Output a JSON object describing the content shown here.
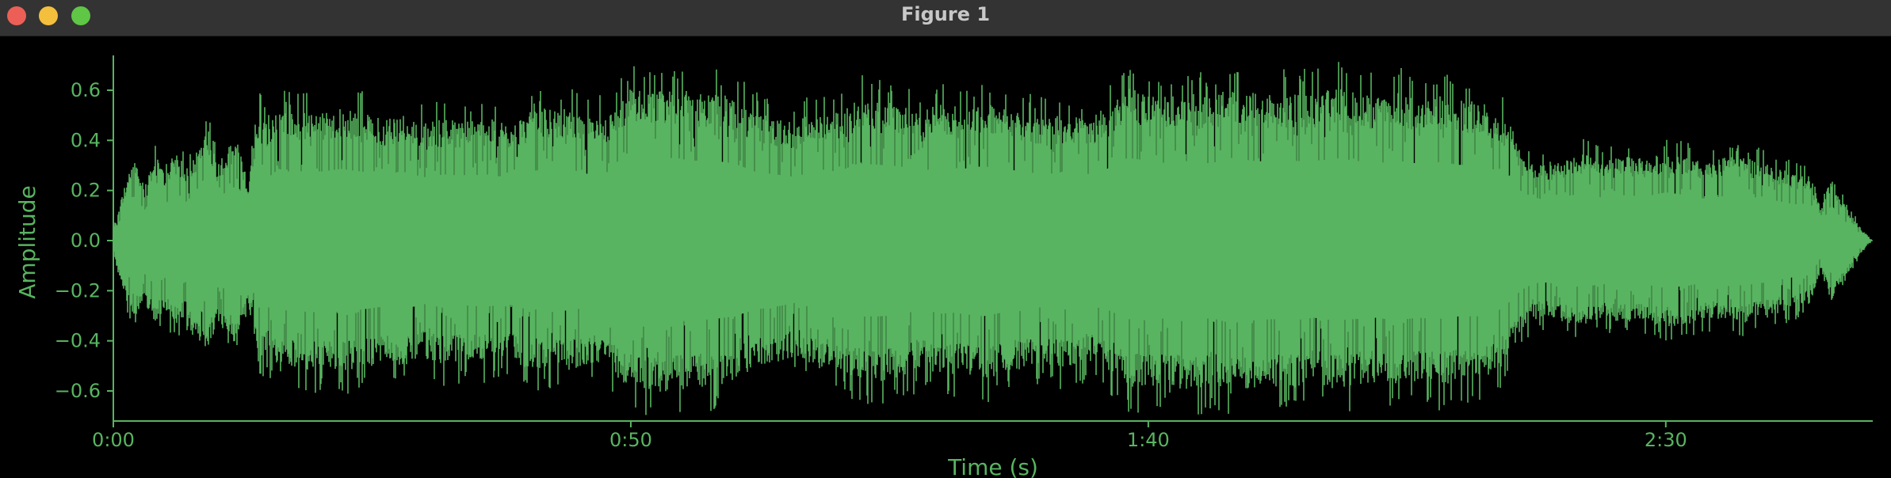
{
  "window": {
    "title": "Figure 1",
    "controls": {
      "close_color": "#ec5f57",
      "minimize_color": "#f3bf3c",
      "zoom_color": "#5fc646"
    }
  },
  "colors": {
    "background": "#000000",
    "titlebar": "#333333",
    "waveform": "#58b460",
    "axis": "#58b460"
  },
  "chart_data": {
    "type": "area",
    "title": "",
    "xlabel": "Time (s)",
    "ylabel": "Amplitude",
    "xlim": [
      0,
      170
    ],
    "ylim": [
      -0.72,
      0.72
    ],
    "grid": false,
    "xticks": [
      {
        "value": 0,
        "label": "0:00"
      },
      {
        "value": 50,
        "label": "0:50"
      },
      {
        "value": 100,
        "label": "1:40"
      },
      {
        "value": 150,
        "label": "2:30"
      }
    ],
    "yticks": [
      {
        "value": 0.6,
        "label": "0.6"
      },
      {
        "value": 0.4,
        "label": "0.4"
      },
      {
        "value": 0.2,
        "label": "0.2"
      },
      {
        "value": 0.0,
        "label": "0.0"
      },
      {
        "value": -0.2,
        "label": "−0.2"
      },
      {
        "value": -0.4,
        "label": "−0.4"
      },
      {
        "value": -0.6,
        "label": "−0.6"
      }
    ],
    "envelope": {
      "x": [
        0,
        1,
        2,
        3,
        4,
        5,
        6,
        7,
        8,
        9,
        10,
        11,
        12,
        13,
        14,
        15,
        16,
        17,
        18,
        19,
        20,
        22,
        24,
        26,
        28,
        30,
        32,
        34,
        36,
        38,
        40,
        42,
        44,
        46,
        48,
        49,
        50,
        52,
        54,
        56,
        58,
        60,
        62,
        64,
        66,
        68,
        70,
        72,
        74,
        76,
        78,
        80,
        82,
        84,
        86,
        88,
        90,
        92,
        94,
        96,
        98,
        100,
        102,
        104,
        106,
        108,
        110,
        112,
        114,
        116,
        118,
        120,
        122,
        124,
        126,
        128,
        130,
        132,
        134,
        135,
        136,
        137,
        138,
        140,
        142,
        144,
        146,
        148,
        150,
        152,
        154,
        156,
        158,
        160,
        162,
        164,
        165,
        166,
        167,
        168,
        169,
        170
      ],
      "upper": [
        0.05,
        0.2,
        0.32,
        0.22,
        0.34,
        0.26,
        0.36,
        0.28,
        0.35,
        0.48,
        0.3,
        0.36,
        0.4,
        0.22,
        0.5,
        0.46,
        0.52,
        0.5,
        0.5,
        0.52,
        0.5,
        0.52,
        0.5,
        0.48,
        0.5,
        0.46,
        0.48,
        0.47,
        0.48,
        0.46,
        0.5,
        0.52,
        0.52,
        0.48,
        0.5,
        0.54,
        0.6,
        0.58,
        0.6,
        0.58,
        0.58,
        0.56,
        0.5,
        0.48,
        0.46,
        0.52,
        0.5,
        0.56,
        0.55,
        0.54,
        0.5,
        0.54,
        0.52,
        0.54,
        0.52,
        0.5,
        0.48,
        0.5,
        0.48,
        0.52,
        0.6,
        0.58,
        0.56,
        0.58,
        0.56,
        0.6,
        0.58,
        0.57,
        0.58,
        0.57,
        0.6,
        0.58,
        0.56,
        0.58,
        0.56,
        0.57,
        0.55,
        0.55,
        0.5,
        0.45,
        0.36,
        0.32,
        0.3,
        0.32,
        0.34,
        0.31,
        0.33,
        0.32,
        0.35,
        0.33,
        0.3,
        0.33,
        0.32,
        0.3,
        0.27,
        0.25,
        0.12,
        0.26,
        0.16,
        0.1,
        0.04,
        0.0
      ],
      "lower": [
        -0.05,
        -0.22,
        -0.3,
        -0.24,
        -0.32,
        -0.27,
        -0.34,
        -0.3,
        -0.36,
        -0.46,
        -0.32,
        -0.36,
        -0.42,
        -0.24,
        -0.48,
        -0.46,
        -0.52,
        -0.5,
        -0.5,
        -0.53,
        -0.5,
        -0.52,
        -0.5,
        -0.48,
        -0.5,
        -0.46,
        -0.49,
        -0.47,
        -0.48,
        -0.46,
        -0.5,
        -0.5,
        -0.51,
        -0.48,
        -0.5,
        -0.55,
        -0.58,
        -0.6,
        -0.59,
        -0.58,
        -0.57,
        -0.55,
        -0.5,
        -0.48,
        -0.45,
        -0.5,
        -0.5,
        -0.55,
        -0.55,
        -0.54,
        -0.5,
        -0.53,
        -0.52,
        -0.55,
        -0.52,
        -0.5,
        -0.48,
        -0.5,
        -0.47,
        -0.5,
        -0.57,
        -0.58,
        -0.56,
        -0.6,
        -0.56,
        -0.6,
        -0.58,
        -0.57,
        -0.58,
        -0.56,
        -0.58,
        -0.57,
        -0.56,
        -0.58,
        -0.56,
        -0.57,
        -0.55,
        -0.55,
        -0.5,
        -0.44,
        -0.36,
        -0.32,
        -0.3,
        -0.32,
        -0.34,
        -0.31,
        -0.32,
        -0.32,
        -0.34,
        -0.33,
        -0.3,
        -0.33,
        -0.32,
        -0.3,
        -0.27,
        -0.25,
        -0.12,
        -0.24,
        -0.16,
        -0.1,
        -0.04,
        0.0
      ]
    }
  }
}
